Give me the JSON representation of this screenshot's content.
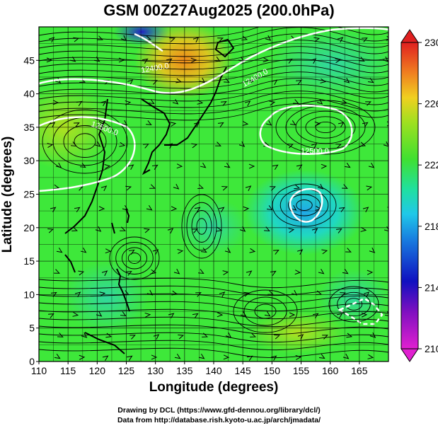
{
  "map": {
    "title": "GSM 00Z27Aug2025 (200.0hPa)",
    "xlabel": "Longitude (degrees)",
    "ylabel": "Latitude  (degrees)",
    "credit_line1": "Drawing by DCL (https://www.gfd-dennou.org/library/dcl/)",
    "credit_line2": "Data from http://database.rish.kyoto-u.ac.jp/arch/jmadata/",
    "lon_range": [
      110,
      170
    ],
    "lat_range": [
      0,
      50
    ],
    "x_ticks": [
      "110",
      "115",
      "120",
      "125",
      "130",
      "135",
      "140",
      "145",
      "150",
      "155",
      "160",
      "165"
    ],
    "y_ticks": [
      "0",
      "5",
      "10",
      "15",
      "20",
      "25",
      "30",
      "35",
      "40",
      "45"
    ],
    "colorbar_ticks": [
      "210",
      "214",
      "218",
      "222",
      "226",
      "230"
    ],
    "colorbar_range": [
      210,
      230
    ],
    "contour_labels": [
      "12400.0",
      "12500.0",
      "12500.0",
      "12400.0"
    ],
    "colors": {
      "field_base": "#3ee83a",
      "warm": "#f4a021",
      "cool": "#21c8e0",
      "deep_cool": "#2020d0",
      "contour": "#ffffff",
      "coast": "#000000"
    }
  }
}
